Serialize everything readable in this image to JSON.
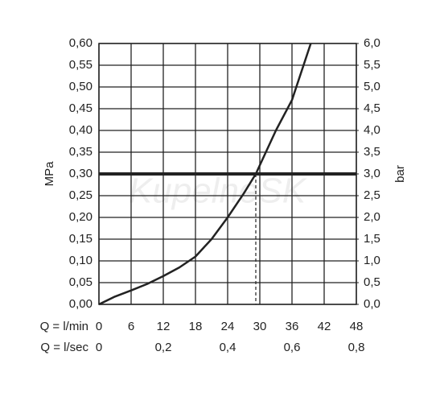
{
  "chart_data": {
    "type": "line",
    "x_label": "Q = l/min",
    "x2_label": "Q = l/sec",
    "y_label": "MPa",
    "y2_label": "bar",
    "watermark": "KupelneSK",
    "x": [
      0,
      3,
      6,
      9,
      12,
      15,
      18,
      21,
      24,
      27,
      29.25,
      33,
      36,
      39.5
    ],
    "series": [
      {
        "color": "#222222",
        "values": [
          0,
          0.018,
          0.032,
          0.047,
          0.065,
          0.085,
          0.11,
          0.15,
          0.2,
          0.255,
          0.3,
          0.4,
          0.47,
          0.6
        ]
      }
    ],
    "reference_line": {
      "y": 0.3
    },
    "drop_line": {
      "x": 29.25,
      "y": 0.3
    },
    "xlim": [
      0,
      48
    ],
    "xticks": [
      0,
      6,
      12,
      18,
      24,
      30,
      36,
      42,
      48
    ],
    "x2lim": [
      0,
      0.8
    ],
    "x2ticks": [
      0,
      {
        "value": 0.2,
        "label": "0,2"
      },
      {
        "value": 0.4,
        "label": "0,4"
      },
      {
        "value": 0.6,
        "label": "0,6"
      },
      {
        "value": 0.8,
        "label": "0,8"
      }
    ],
    "ylim": [
      0,
      0.6
    ],
    "yticks": [
      {
        "value": 0,
        "label": "0,00"
      },
      {
        "value": 0.05,
        "label": "0,05"
      },
      {
        "value": 0.1,
        "label": "0,10"
      },
      {
        "value": 0.15,
        "label": "0,15"
      },
      {
        "value": 0.2,
        "label": "0,20"
      },
      {
        "value": 0.25,
        "label": "0,25"
      },
      {
        "value": 0.3,
        "label": "0,30"
      },
      {
        "value": 0.35,
        "label": "0,35"
      },
      {
        "value": 0.4,
        "label": "0,40"
      },
      {
        "value": 0.45,
        "label": "0,45"
      },
      {
        "value": 0.5,
        "label": "0,50"
      },
      {
        "value": 0.55,
        "label": "0,55"
      },
      {
        "value": 0.6,
        "label": "0,60"
      }
    ],
    "y2lim": [
      0,
      6
    ],
    "y2ticks": [
      {
        "value": 0,
        "label": "0,0"
      },
      {
        "value": 0.5,
        "label": "0,5"
      },
      {
        "value": 1,
        "label": "1,0"
      },
      {
        "value": 1.5,
        "label": "1,5"
      },
      {
        "value": 2,
        "label": "2,0"
      },
      {
        "value": 2.5,
        "label": "2,5"
      },
      {
        "value": 3,
        "label": "3,0"
      },
      {
        "value": 3.5,
        "label": "3,5"
      },
      {
        "value": 4,
        "label": "4,0"
      },
      {
        "value": 4.5,
        "label": "4,5"
      },
      {
        "value": 5,
        "label": "5,0"
      },
      {
        "value": 5.5,
        "label": "5,5"
      },
      {
        "value": 6,
        "label": "6,0"
      }
    ],
    "grid": true
  }
}
